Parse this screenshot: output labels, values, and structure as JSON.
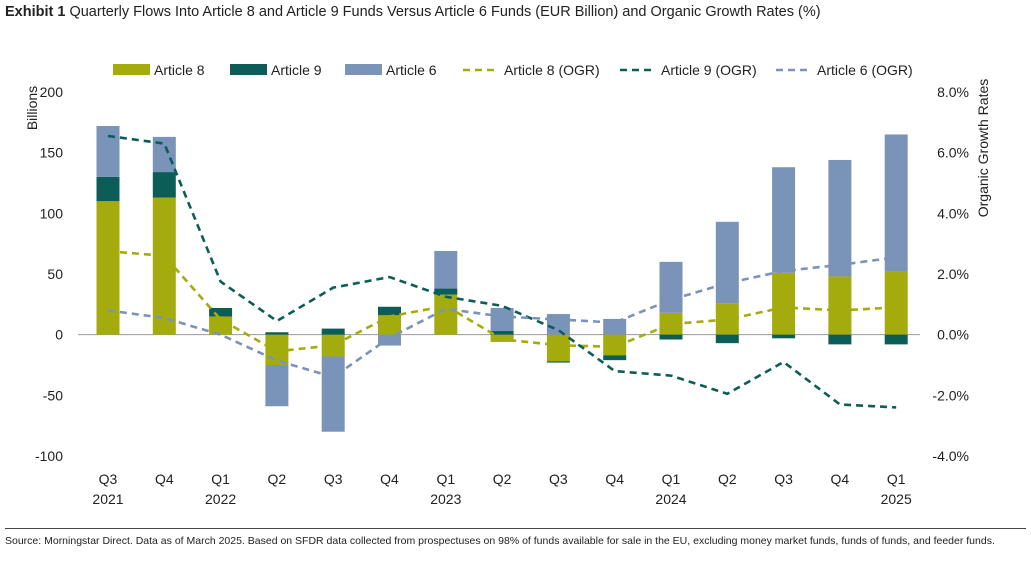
{
  "title": {
    "exhibit": "Exhibit 1",
    "text": "Quarterly Flows Into Article 8 and Article 9 Funds Versus Article 6 Funds (EUR Billion) and Organic Growth Rates (%)"
  },
  "source": "Source: Morningstar Direct. Data as of March 2025. Based on SFDR data collected from prospectuses on 98% of funds available for sale in the EU, excluding money market funds, funds of funds, and feeder funds.",
  "colors": {
    "article8": "#a3ac0c",
    "article9": "#0c5d58",
    "article6": "#7a93b8",
    "zero_line": "#999999"
  },
  "chart_data": {
    "type": "bar",
    "stacked": true,
    "legend_position": "top",
    "grid": false,
    "categories": [
      "Q3",
      "Q4",
      "Q1",
      "Q2",
      "Q3",
      "Q4",
      "Q1",
      "Q2",
      "Q3",
      "Q4",
      "Q1",
      "Q2",
      "Q3",
      "Q4",
      "Q1"
    ],
    "category_years": [
      "2021",
      "",
      "2022",
      "",
      "",
      "",
      "2023",
      "",
      "",
      "",
      "2024",
      "",
      "",
      "",
      "2025"
    ],
    "ylabel": "Billions",
    "y2label": "Organic Growth Rates",
    "ylim": [
      -100,
      200
    ],
    "yticks": [
      -100,
      -50,
      0,
      50,
      100,
      150,
      200
    ],
    "y2lim": [
      -4,
      8
    ],
    "y2ticks": [
      "-4.0%",
      "-2.0%",
      "0.0%",
      "2.0%",
      "4.0%",
      "6.0%",
      "8.0%"
    ],
    "y2tick_values": [
      -4,
      -2,
      0,
      2,
      4,
      6,
      8
    ],
    "series": [
      {
        "name": "Article 8",
        "kind": "bar",
        "axis": "left",
        "values": [
          110,
          113,
          15,
          -25,
          -18,
          16,
          33,
          -6,
          -22,
          -17,
          18,
          26,
          51,
          48,
          52
        ]
      },
      {
        "name": "Article 9",
        "kind": "bar",
        "axis": "left",
        "values": [
          20,
          21,
          7,
          2,
          5,
          7,
          5,
          3,
          -1,
          -4,
          -4,
          -7,
          -3,
          -8,
          -8
        ]
      },
      {
        "name": "Article 6",
        "kind": "bar",
        "axis": "left",
        "values": [
          42,
          29,
          0,
          -34,
          -62,
          -9,
          31,
          19,
          17,
          13,
          42,
          67,
          87,
          96,
          113
        ]
      },
      {
        "name": "Article 8 (OGR)",
        "kind": "line",
        "axis": "right",
        "values": [
          2.75,
          2.6,
          0.5,
          -0.55,
          -0.35,
          0.6,
          0.95,
          -0.15,
          -0.35,
          -0.4,
          0.35,
          0.5,
          0.9,
          0.8,
          0.9
        ]
      },
      {
        "name": "Article 9 (OGR)",
        "kind": "line",
        "axis": "right",
        "values": [
          6.55,
          6.3,
          1.75,
          0.45,
          1.55,
          1.9,
          1.25,
          0.95,
          0.15,
          -1.2,
          -1.35,
          -1.95,
          -0.9,
          -2.3,
          -2.4
        ]
      },
      {
        "name": "Article 6 (OGR)",
        "kind": "line",
        "axis": "right",
        "values": [
          0.8,
          0.55,
          0.0,
          -0.85,
          -1.4,
          -0.1,
          0.85,
          0.6,
          0.5,
          0.4,
          1.15,
          1.7,
          2.1,
          2.3,
          2.55
        ]
      }
    ]
  }
}
